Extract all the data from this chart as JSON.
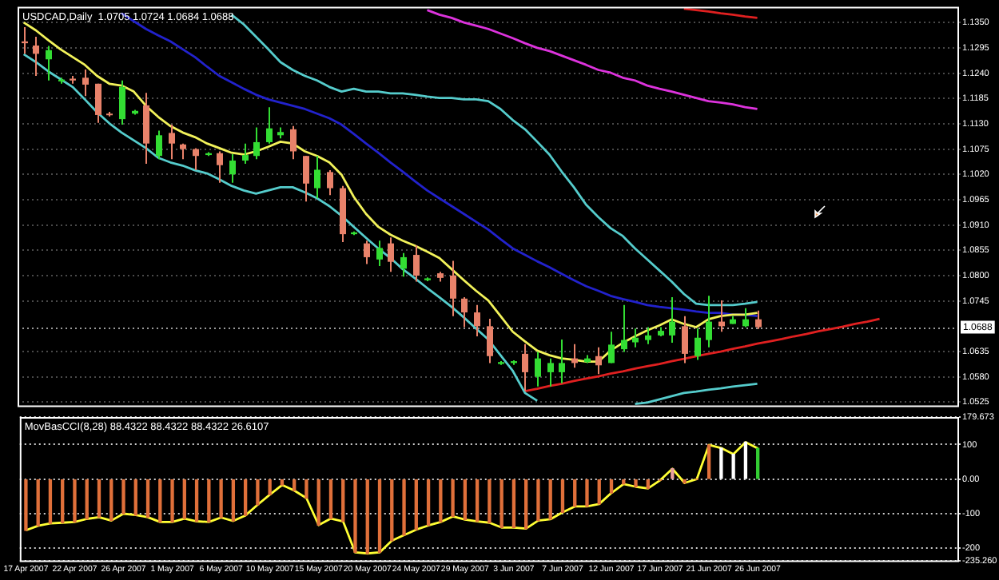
{
  "chart_data": [
    {
      "type": "candlestick",
      "title": "USDCAD,Daily  1.0705 1.0724 1.0684 1.0688",
      "categories": [
        null,
        null,
        null,
        null,
        null,
        null,
        null,
        null,
        null,
        null,
        null,
        null,
        null,
        null,
        null,
        null,
        null,
        null,
        null,
        null,
        null,
        null,
        null,
        null,
        null,
        null,
        null,
        null,
        null,
        null,
        null,
        null,
        null,
        null,
        null,
        null,
        null,
        null,
        null,
        null,
        null,
        null,
        null,
        null,
        null,
        null,
        null,
        null,
        null,
        null,
        null,
        null,
        null,
        null,
        null,
        null,
        null,
        null,
        null,
        null,
        null,
        null,
        null,
        null,
        null,
        null,
        null,
        null,
        null,
        null,
        null,
        null,
        null,
        null,
        null,
        null,
        null
      ],
      "ohlc": [
        [
          1.1309,
          1.134,
          1.1282,
          1.1305
        ],
        [
          1.13,
          1.1319,
          1.1234,
          1.1282
        ],
        [
          1.127,
          1.1299,
          1.1224,
          1.129
        ],
        [
          1.1222,
          1.123,
          1.1217,
          1.1226
        ],
        [
          1.1228,
          1.1234,
          1.1217,
          1.1224
        ],
        [
          1.123,
          1.1248,
          1.119,
          1.1215
        ],
        [
          1.1217,
          1.1217,
          1.1132,
          1.1149
        ],
        [
          1.1152,
          1.1156,
          1.1146,
          1.1149
        ],
        [
          1.114,
          1.1224,
          1.1128,
          1.121
        ],
        [
          1.1152,
          1.116,
          1.115,
          1.1158
        ],
        [
          1.117,
          1.1197,
          1.1043,
          1.1087
        ],
        [
          1.106,
          1.1115,
          1.1053,
          1.1105
        ],
        [
          1.111,
          1.1128,
          1.1053,
          1.1087
        ],
        [
          1.1085,
          1.1087,
          1.1053,
          1.1075
        ],
        [
          1.1075,
          1.1077,
          1.1029,
          1.106
        ],
        [
          1.1062,
          1.1068,
          1.106,
          1.1066
        ],
        [
          1.1066,
          1.107,
          1.1002,
          1.104
        ],
        [
          1.102,
          1.1064,
          1.1002,
          1.105
        ],
        [
          1.105,
          1.1087,
          1.1043,
          1.1062
        ],
        [
          1.106,
          1.1122,
          1.1053,
          1.109
        ],
        [
          1.109,
          1.1166,
          1.1087,
          1.112
        ],
        [
          1.1105,
          1.1122,
          1.1098,
          1.1112
        ],
        [
          1.1118,
          1.1125,
          1.1053,
          1.107
        ],
        [
          1.106,
          1.106,
          1.0961,
          1.1
        ],
        [
          1.099,
          1.106,
          1.0968,
          1.103
        ],
        [
          1.1025,
          1.1029,
          1.0975,
          1.099
        ],
        [
          1.099,
          1.0995,
          1.0873,
          1.089
        ],
        [
          1.089,
          1.0896,
          1.0888,
          1.0894
        ],
        [
          1.087,
          1.0876,
          1.0825,
          1.084
        ],
        [
          1.0835,
          1.0876,
          1.0821,
          1.086
        ],
        [
          1.087,
          1.0883,
          1.0808,
          1.083
        ],
        [
          1.0815,
          1.0849,
          1.0798,
          1.084
        ],
        [
          1.0845,
          1.0866,
          1.0787,
          1.08
        ],
        [
          1.079,
          1.0796,
          1.0788,
          1.0794
        ],
        [
          1.0805,
          1.0808,
          1.0787,
          1.0795
        ],
        [
          1.08,
          1.0832,
          1.0712,
          1.075
        ],
        [
          1.075,
          1.0753,
          1.0688,
          1.072
        ],
        [
          1.072,
          1.0736,
          1.0668,
          1.069
        ],
        [
          1.069,
          1.0706,
          1.061,
          1.0625
        ],
        [
          1.0608,
          1.0614,
          1.0606,
          1.0612
        ],
        [
          1.061,
          1.0616,
          1.0606,
          1.0614
        ],
        [
          1.063,
          1.0651,
          1.0549,
          1.059
        ],
        [
          1.058,
          1.0634,
          1.0559,
          1.062
        ],
        [
          1.059,
          1.062,
          1.0559,
          1.061
        ],
        [
          1.059,
          1.0661,
          1.0566,
          1.061
        ],
        [
          1.062,
          1.0651,
          1.06,
          1.061
        ],
        [
          1.0612,
          1.0627,
          1.061,
          1.062
        ],
        [
          1.0625,
          1.0644,
          1.0586,
          1.0605
        ],
        [
          1.061,
          1.0678,
          1.061,
          1.065
        ],
        [
          1.064,
          1.0736,
          1.0634,
          1.066
        ],
        [
          1.0655,
          1.0685,
          1.0644,
          1.0665
        ],
        [
          1.066,
          1.0688,
          1.0651,
          1.067
        ],
        [
          1.067,
          1.0688,
          1.0668,
          1.068
        ],
        [
          1.067,
          1.0753,
          1.0654,
          1.07
        ],
        [
          1.069,
          1.0712,
          1.061,
          1.063
        ],
        [
          1.0625,
          1.0685,
          1.0617,
          1.0665
        ],
        [
          1.066,
          1.0756,
          1.0644,
          1.07
        ],
        [
          1.07,
          1.0746,
          1.0678,
          1.069
        ],
        [
          1.0695,
          1.0712,
          1.0695,
          1.0705
        ],
        [
          1.069,
          1.0729,
          1.0688,
          1.0705
        ],
        [
          1.0705,
          1.0724,
          1.0684,
          1.0688
        ],
        null,
        null,
        null,
        null,
        null,
        null,
        null,
        null,
        null,
        null,
        null,
        null,
        null,
        null,
        null,
        null
      ],
      "colors": [
        "#e8826a",
        "#e8826a",
        "#33dd33",
        "#33dd33",
        "#e8826a",
        "#e8826a",
        "#e8826a",
        "#e8826a",
        "#33dd33",
        "#33dd33",
        "#e8826a",
        "#33dd33",
        "#e8826a",
        "#e8826a",
        "#e8826a",
        "#33dd33",
        "#e8826a",
        "#33dd33",
        "#33dd33",
        "#33dd33",
        "#33dd33",
        "#33dd33",
        "#e8826a",
        "#e8826a",
        "#33dd33",
        "#e8826a",
        "#e8826a",
        "#33dd33",
        "#e8826a",
        "#33dd33",
        "#e8826a",
        "#33dd33",
        "#e8826a",
        "#33dd33",
        "#e8826a",
        "#e8826a",
        "#e8826a",
        "#e8826a",
        "#e8826a",
        "#33dd33",
        "#33dd33",
        "#e8826a",
        "#33dd33",
        "#33dd33",
        "#33dd33",
        "#e8826a",
        "#33dd33",
        "#e8826a",
        "#33dd33",
        "#33dd33",
        "#33dd33",
        "#33dd33",
        "#33dd33",
        "#33dd33",
        "#e8826a",
        "#33dd33",
        "#33dd33",
        "#e8826a",
        "#33dd33",
        "#33dd33",
        "#e8826a",
        null,
        null,
        null,
        null,
        null,
        null,
        null,
        null,
        null,
        null,
        null,
        null,
        null,
        null,
        null,
        null
      ],
      "series": [
        {
          "type": "line",
          "color": "#f2f25a",
          "values": [
            1.135,
            1.1333,
            1.1312,
            1.1292,
            1.1275,
            1.1258,
            1.1234,
            1.1217,
            1.1213,
            1.12,
            1.1169,
            1.1145,
            1.1125,
            1.1111,
            1.1101,
            1.1087,
            1.1077,
            1.1067,
            1.1063,
            1.107,
            1.108,
            1.1091,
            1.1087,
            1.107,
            1.106,
            1.1046,
            1.1019,
            1.0971,
            1.0934,
            1.0906,
            1.0889,
            1.0876,
            1.0865,
            1.0852,
            1.0838,
            1.0814,
            1.079,
            1.0767,
            1.0746,
            1.0712,
            1.0678,
            1.0657,
            1.0637,
            1.0627,
            1.062,
            1.0617,
            1.0613,
            1.0613,
            1.0637,
            1.0654,
            1.0668,
            1.0681,
            1.0692,
            1.0705,
            1.0695,
            1.0688,
            1.0705,
            1.0712,
            1.0715,
            1.0715,
            1.0719,
            null,
            null,
            null,
            null,
            null,
            null,
            null,
            null,
            null,
            null,
            null,
            null,
            null,
            null,
            null,
            null
          ]
        },
        {
          "type": "line",
          "color": "#2222cc",
          "values": [
            null,
            null,
            null,
            null,
            null,
            null,
            null,
            null,
            1.137,
            1.1353,
            1.1336,
            1.1322,
            1.1309,
            1.1292,
            1.1275,
            1.1254,
            1.1234,
            1.122,
            1.1206,
            1.1193,
            1.1183,
            1.1176,
            1.1169,
            1.1162,
            1.1152,
            1.1142,
            1.1128,
            1.1108,
            1.1087,
            1.1067,
            1.1046,
            1.1026,
            1.1005,
            1.0985,
            1.0968,
            1.0951,
            1.0934,
            1.0917,
            1.09,
            1.0879,
            1.0859,
            1.0845,
            1.0831,
            1.0818,
            1.0804,
            1.079,
            1.0777,
            1.0767,
            1.0756,
            1.0749,
            1.0743,
            1.0736,
            1.0732,
            1.0729,
            1.0726,
            1.0722,
            1.0719,
            1.0719,
            1.0715,
            1.0715,
            1.0712,
            null,
            null,
            null,
            null,
            null,
            null,
            null,
            null,
            null,
            null,
            null,
            null,
            null,
            null,
            null,
            null
          ]
        },
        {
          "type": "line",
          "color": "#55cccc",
          "values": [
            null,
            null,
            null,
            null,
            null,
            null,
            null,
            null,
            null,
            null,
            null,
            null,
            null,
            null,
            null,
            null,
            null,
            1.1367,
            1.1346,
            1.1319,
            1.1292,
            1.1264,
            1.1247,
            1.1234,
            1.1224,
            1.121,
            1.12,
            1.1206,
            1.12,
            1.12,
            1.1196,
            1.1196,
            1.1193,
            1.1189,
            1.1186,
            1.1186,
            1.1183,
            1.1183,
            1.1179,
            1.1162,
            1.1138,
            1.1118,
            1.1091,
            1.1063,
            1.1026,
            1.0992,
            1.0954,
            1.0927,
            1.0903,
            1.0886,
            1.0859,
            1.0835,
            1.0811,
            1.0787,
            1.076,
            1.0739,
            1.0736,
            1.0736,
            1.0736,
            1.0739,
            1.0743,
            null,
            null,
            null,
            null,
            null,
            null,
            null,
            null,
            null,
            null,
            null,
            null,
            null,
            null,
            null,
            null
          ]
        },
        {
          "type": "line",
          "color": "#55cccc",
          "values": [
            1.1281,
            1.1264,
            1.1244,
            1.1227,
            1.121,
            1.1183,
            1.1155,
            1.1131,
            1.1111,
            1.1094,
            1.1077,
            1.1056,
            1.1046,
            1.1039,
            1.1029,
            1.1022,
            1.1009,
            1.0995,
            1.0985,
            1.0978,
            1.0985,
            1.0992,
            1.0992,
            1.0981,
            1.0968,
            1.0951,
            1.093,
            1.0906,
            1.0882,
            1.0859,
            1.0838,
            1.0814,
            1.0794,
            1.0773,
            1.0753,
            1.0732,
            1.0709,
            1.0685,
            1.0661,
            1.0627,
            1.0593,
            1.0545,
            1.0528,
            null,
            null,
            null,
            null,
            null,
            null,
            null,
            1.0521,
            1.0524,
            1.0531,
            1.0538,
            1.0545,
            1.0548,
            1.0552,
            1.0555,
            1.0559,
            1.0562,
            1.0565,
            null,
            null,
            null,
            null,
            null,
            null,
            null,
            null,
            null,
            null,
            null,
            null,
            null,
            null,
            null,
            null
          ]
        },
        {
          "type": "line",
          "color": "#dd33dd",
          "values": [
            null,
            null,
            null,
            null,
            null,
            null,
            null,
            null,
            null,
            null,
            null,
            null,
            null,
            null,
            null,
            null,
            null,
            null,
            null,
            null,
            null,
            null,
            null,
            null,
            null,
            null,
            null,
            null,
            null,
            null,
            null,
            null,
            null,
            1.1377,
            1.1367,
            1.136,
            1.135,
            1.1343,
            1.1336,
            1.1326,
            1.1316,
            1.1305,
            1.1295,
            1.1288,
            1.1278,
            1.1268,
            1.1258,
            1.1247,
            1.1241,
            1.123,
            1.1224,
            1.1213,
            1.1206,
            1.12,
            1.1193,
            1.1186,
            1.1179,
            1.1176,
            1.1172,
            1.1166,
            1.1162,
            null,
            null,
            null,
            null,
            null,
            null,
            null,
            null,
            null,
            null,
            null,
            null,
            null,
            null,
            null,
            null
          ]
        },
        {
          "type": "line",
          "color": "#e02020",
          "values": [
            null,
            null,
            null,
            null,
            null,
            null,
            null,
            null,
            null,
            null,
            null,
            null,
            null,
            null,
            null,
            null,
            null,
            null,
            null,
            null,
            null,
            null,
            null,
            null,
            null,
            null,
            null,
            null,
            null,
            null,
            null,
            null,
            null,
            null,
            null,
            null,
            null,
            null,
            null,
            null,
            null,
            null,
            null,
            null,
            null,
            null,
            null,
            null,
            null,
            null,
            null,
            null,
            null,
            null,
            1.138,
            1.1377,
            1.1374,
            1.137,
            1.1367,
            1.1363,
            1.136,
            null,
            null,
            null,
            null,
            null,
            null,
            null,
            null,
            null,
            null,
            null,
            null,
            null,
            null,
            null,
            null
          ]
        },
        {
          "type": "line",
          "color": "#e02020",
          "values": [
            null,
            null,
            null,
            null,
            null,
            null,
            null,
            null,
            null,
            null,
            null,
            null,
            null,
            null,
            null,
            null,
            null,
            null,
            null,
            null,
            null,
            null,
            null,
            null,
            null,
            null,
            null,
            null,
            null,
            null,
            null,
            null,
            null,
            null,
            null,
            null,
            null,
            null,
            null,
            null,
            null,
            1.0549,
            1.0554,
            1.056,
            1.0565,
            1.0571,
            1.0576,
            1.0581,
            1.0587,
            1.0592,
            1.0598,
            1.0603,
            1.0608,
            1.0614,
            1.0619,
            1.0625,
            1.063,
            1.0635,
            1.0641,
            1.0646,
            1.0652,
            1.0657,
            1.0662,
            1.0668,
            1.0673,
            1.0679,
            1.0684,
            1.0689,
            1.0695,
            1.07,
            1.0706,
            null,
            null,
            null,
            null,
            null,
            null
          ]
        }
      ],
      "ylim": [
        1.0518,
        1.1384
      ],
      "yticks": [
        {
          "value": 1.135,
          "label": "1.1350"
        },
        {
          "value": 1.1295,
          "label": "1.1295"
        },
        {
          "value": 1.124,
          "label": "1.1240"
        },
        {
          "value": 1.1185,
          "label": "1.1185"
        },
        {
          "value": 1.113,
          "label": "1.1130"
        },
        {
          "value": 1.1075,
          "label": "1.1075"
        },
        {
          "value": 1.102,
          "label": "1.1020"
        },
        {
          "value": 1.0965,
          "label": "1.0965"
        },
        {
          "value": 1.091,
          "label": "1.0910"
        },
        {
          "value": 1.0855,
          "label": "1.0855"
        },
        {
          "value": 1.08,
          "label": "1.0800"
        },
        {
          "value": 1.0745,
          "label": "1.0745"
        },
        {
          "value": 1.0635,
          "label": "1.0635"
        },
        {
          "value": 1.058,
          "label": "1.0580"
        },
        {
          "value": 1.0525,
          "label": "1.0525"
        }
      ],
      "ref_lines": [
        {
          "axis": "y",
          "value": 1.0688,
          "label": "1.0688",
          "color": "#9a9a9a",
          "line_style": "dotted"
        }
      ],
      "grid": true,
      "tick_labels": "y"
    },
    {
      "type": "bar",
      "title": "MovBasCCI(8,28) 88.4322 88.4322 88.4322 26.6107",
      "categories": [
        "17 Apr 2007",
        null,
        null,
        null,
        "22 Apr 2007",
        null,
        null,
        null,
        "26 Apr 2007",
        null,
        null,
        null,
        "1 May 2007",
        null,
        null,
        null,
        "6 May 2007",
        null,
        null,
        null,
        "10 May 2007",
        null,
        null,
        null,
        "15 May 2007",
        null,
        null,
        null,
        "20 May 2007",
        null,
        null,
        null,
        "24 May 2007",
        null,
        null,
        null,
        "29 May 2007",
        null,
        null,
        null,
        "3 Jun 2007",
        null,
        null,
        null,
        "7 Jun 2007",
        null,
        null,
        null,
        "12 Jun 2007",
        null,
        null,
        null,
        "17 Jun 2007",
        null,
        null,
        null,
        "21 Jun 2007",
        null,
        null,
        null,
        "26 Jun 2007",
        null,
        null,
        null,
        null,
        null,
        null,
        null,
        null,
        null,
        null,
        null,
        null,
        null,
        null,
        null,
        null
      ],
      "series": [
        {
          "type": "bar",
          "colors": [
            "#e0703a",
            "#e0703a",
            "#e0703a",
            "#e0703a",
            "#e0703a",
            "#e0703a",
            "#e0703a",
            "#e0703a",
            "#e0703a",
            "#e0703a",
            "#e0703a",
            "#e0703a",
            "#e0703a",
            "#e0703a",
            "#e0703a",
            "#e0703a",
            "#e0703a",
            "#e0703a",
            "#e0703a",
            "#e0703a",
            "#e0703a",
            "#e0703a",
            "#e0703a",
            "#e0703a",
            "#e0703a",
            "#e0703a",
            "#e0703a",
            "#e0703a",
            "#e0703a",
            "#e0703a",
            "#e0703a",
            "#e0703a",
            "#e0703a",
            "#e0703a",
            "#e0703a",
            "#e0703a",
            "#e0703a",
            "#e0703a",
            "#e0703a",
            "#e0703a",
            "#e0703a",
            "#e0703a",
            "#e0703a",
            "#e0703a",
            "#e0703a",
            "#e0703a",
            "#e0703a",
            "#e0703a",
            "#e0703a",
            "#e0703a",
            "#e0703a",
            "#e0703a",
            "#e0703a",
            "#e8a0a0",
            "#e0703a",
            "#e0703a",
            "#e0703a",
            "#ffffff",
            "#ffffff",
            "#ffffff",
            "#33cc33",
            null,
            null,
            null,
            null,
            null,
            null,
            null,
            null,
            null,
            null,
            null,
            null,
            null,
            null,
            null,
            null
          ],
          "values": [
            -148,
            -135,
            -128,
            -126,
            -124,
            -115,
            -110,
            -120,
            -100,
            -104,
            -110,
            -124,
            -124,
            -114,
            -122,
            -124,
            -111,
            -121,
            -105,
            -74,
            -45,
            -17,
            -33,
            -55,
            -133,
            -114,
            -122,
            -212,
            -215,
            -212,
            -178,
            -162,
            -146,
            -134,
            -124,
            -108,
            -117,
            -122,
            -126,
            -140,
            -140,
            -143,
            -120,
            -116,
            -96,
            -79,
            -79,
            -72,
            -40,
            -14,
            -22,
            -27,
            -3,
            30,
            -11,
            0,
            99,
            90,
            72,
            107,
            89,
            null,
            null,
            null,
            null,
            null,
            null,
            null,
            null,
            null,
            null,
            null,
            null,
            null,
            null,
            null,
            null
          ]
        },
        {
          "type": "line",
          "color": "#ffff33",
          "values": [
            -148,
            -135,
            -128,
            -126,
            -124,
            -115,
            -110,
            -120,
            -100,
            -104,
            -110,
            -124,
            -124,
            -114,
            -122,
            -124,
            -111,
            -121,
            -105,
            -74,
            -45,
            -17,
            -33,
            -55,
            -133,
            -114,
            -122,
            -212,
            -215,
            -212,
            -178,
            -162,
            -146,
            -134,
            -124,
            -108,
            -117,
            -122,
            -126,
            -140,
            -140,
            -143,
            -120,
            -116,
            -96,
            -79,
            -79,
            -72,
            -40,
            -14,
            -22,
            -27,
            -3,
            30,
            -11,
            0,
            99,
            90,
            72,
            107,
            89,
            null,
            null,
            null,
            null,
            null,
            null,
            null,
            null,
            null,
            null,
            null,
            null,
            null,
            null,
            null,
            null
          ]
        }
      ],
      "ylim": [
        -235.26,
        179.673
      ],
      "yticks": [
        179.673,
        100,
        {
          "value": 0,
          "label": "0.00"
        },
        -100,
        -200,
        {
          "value": -235.26,
          "label": "-235.260"
        }
      ],
      "grid": "y"
    }
  ]
}
